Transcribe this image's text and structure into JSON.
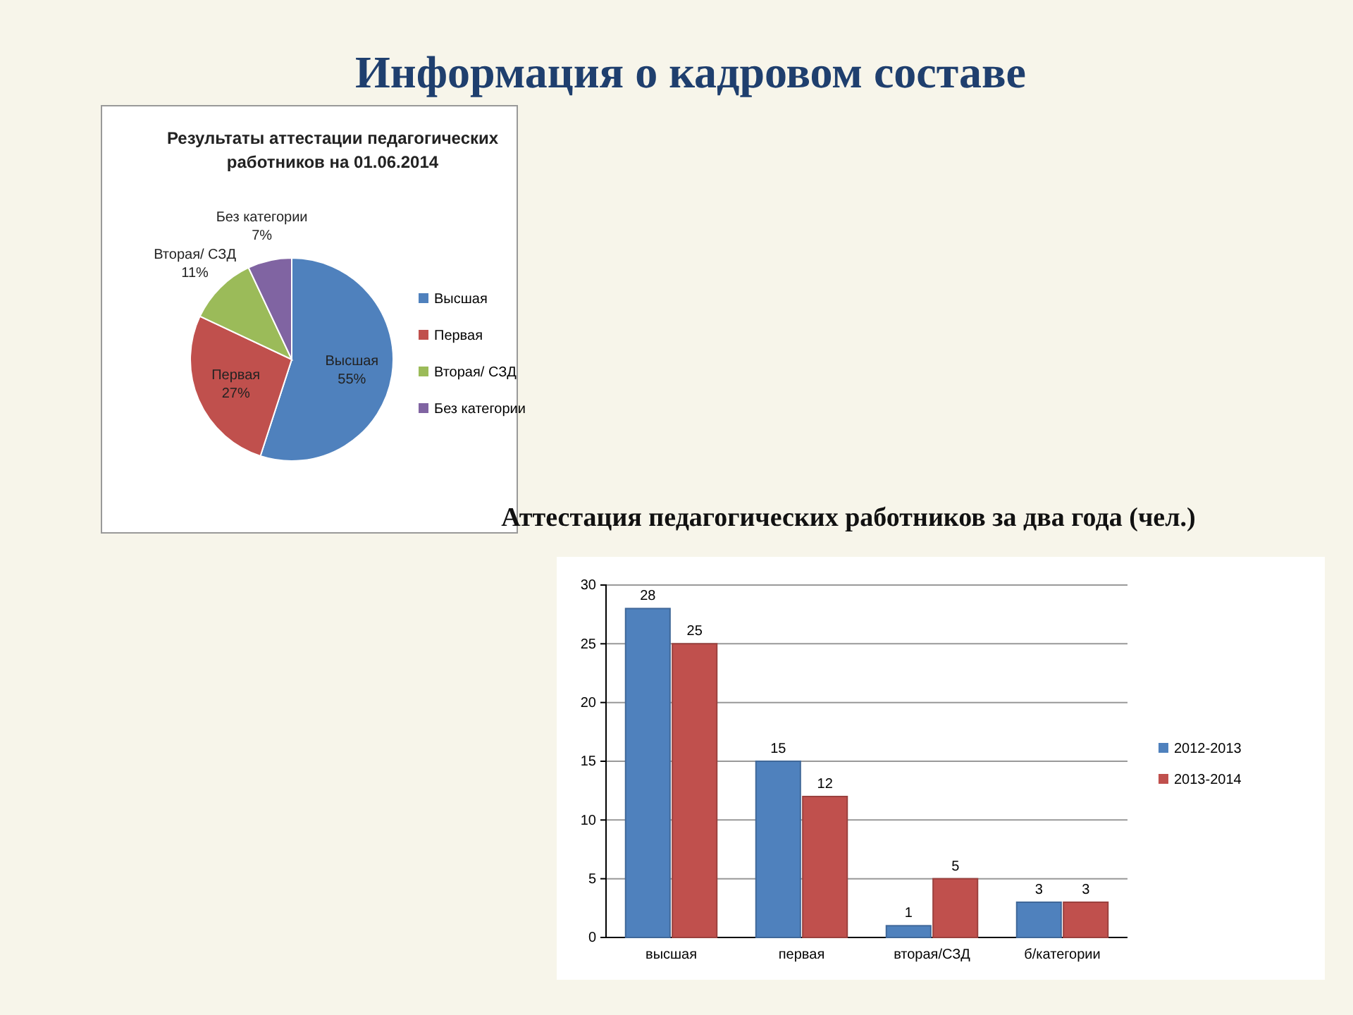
{
  "chart_data": [
    {
      "type": "other",
      "title": "Информация о кадровом составе"
    },
    {
      "type": "pie",
      "title": "Результаты аттестации педагогических работников на 01.06.2014",
      "categories": [
        "Высшая",
        "Первая",
        "Вторая/ СЗД",
        "Без категории"
      ],
      "values": [
        55,
        27,
        11,
        7
      ],
      "value_labels": [
        "55%",
        "27%",
        "11%",
        "7%"
      ],
      "colors": [
        "#4f81bd",
        "#c0504d",
        "#9bbb59",
        "#8064a2"
      ],
      "legend": "right"
    },
    {
      "type": "bar",
      "title": "Аттестация педагогических работников за два года (чел.)",
      "categories": [
        "высшая",
        "первая",
        "вторая/СЗД",
        "б/категории"
      ],
      "series": [
        {
          "name": "2012-2013",
          "color": "#4f81bd",
          "values": [
            28,
            15,
            1,
            3
          ]
        },
        {
          "name": "2013-2014",
          "color": "#c0504d",
          "values": [
            25,
            12,
            5,
            3
          ]
        }
      ],
      "ylim": [
        0,
        30
      ],
      "yticks": [
        0,
        5,
        10,
        15,
        20,
        25,
        30
      ],
      "grid": "y",
      "legend": "right",
      "data_labels": true
    }
  ]
}
